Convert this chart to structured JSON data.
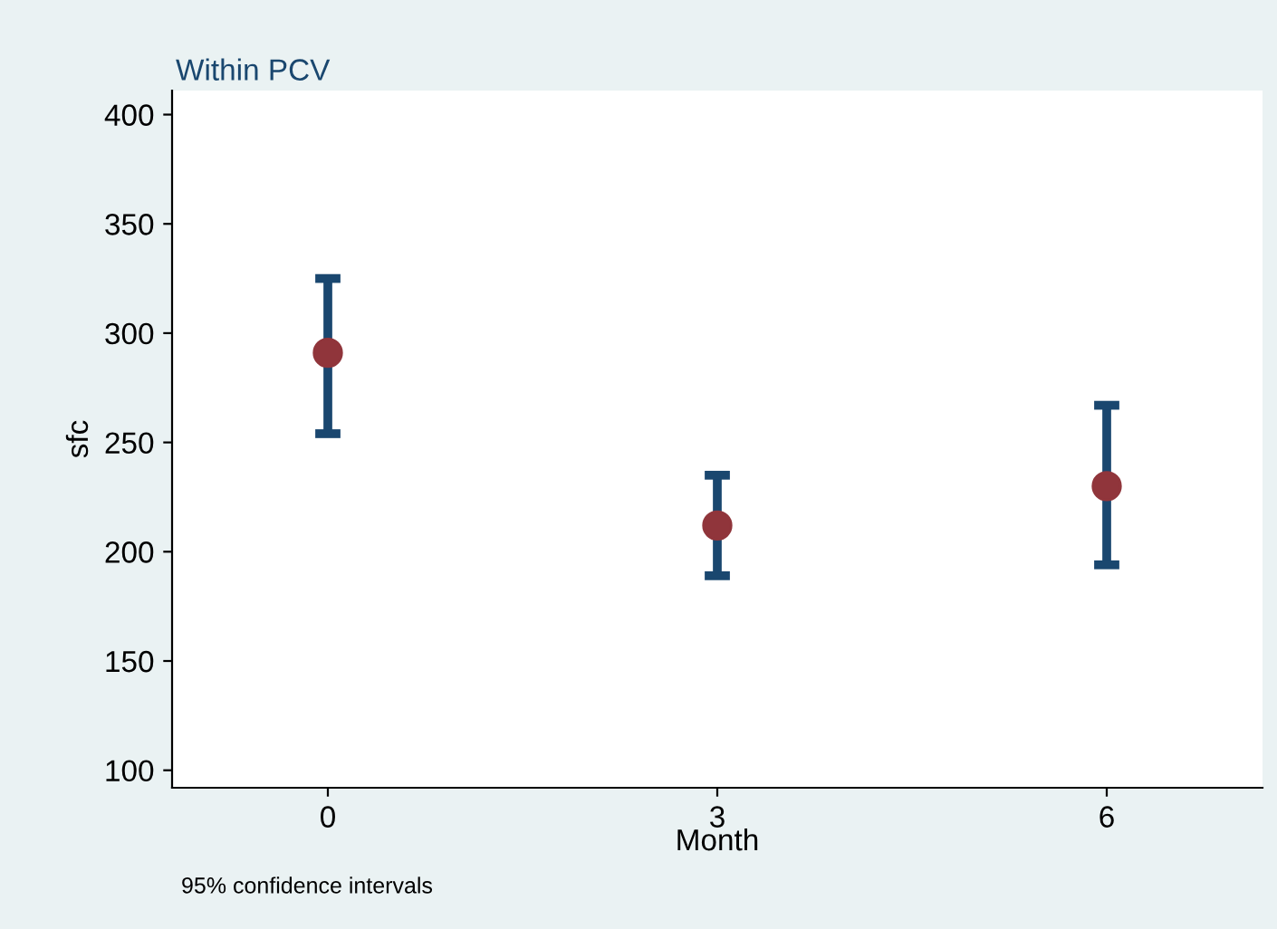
{
  "chart_data": {
    "type": "scatter",
    "title": "Within PCV",
    "xlabel": "Month",
    "ylabel": "sfc",
    "x": [
      0,
      3,
      6
    ],
    "values": [
      291,
      212,
      230
    ],
    "errors": [
      [
        254,
        325
      ],
      [
        189,
        235
      ],
      [
        194,
        267
      ]
    ],
    "color": "#90353b",
    "marker": "circle",
    "grid": false,
    "legend": false,
    "xlim": [
      -1.2,
      7.2
    ],
    "ylim": [
      92,
      411
    ],
    "xticks": [
      0,
      3,
      6
    ],
    "yticks": [
      100,
      150,
      200,
      250,
      300,
      350,
      400
    ],
    "annotations": [
      "95% confidence intervals"
    ]
  }
}
